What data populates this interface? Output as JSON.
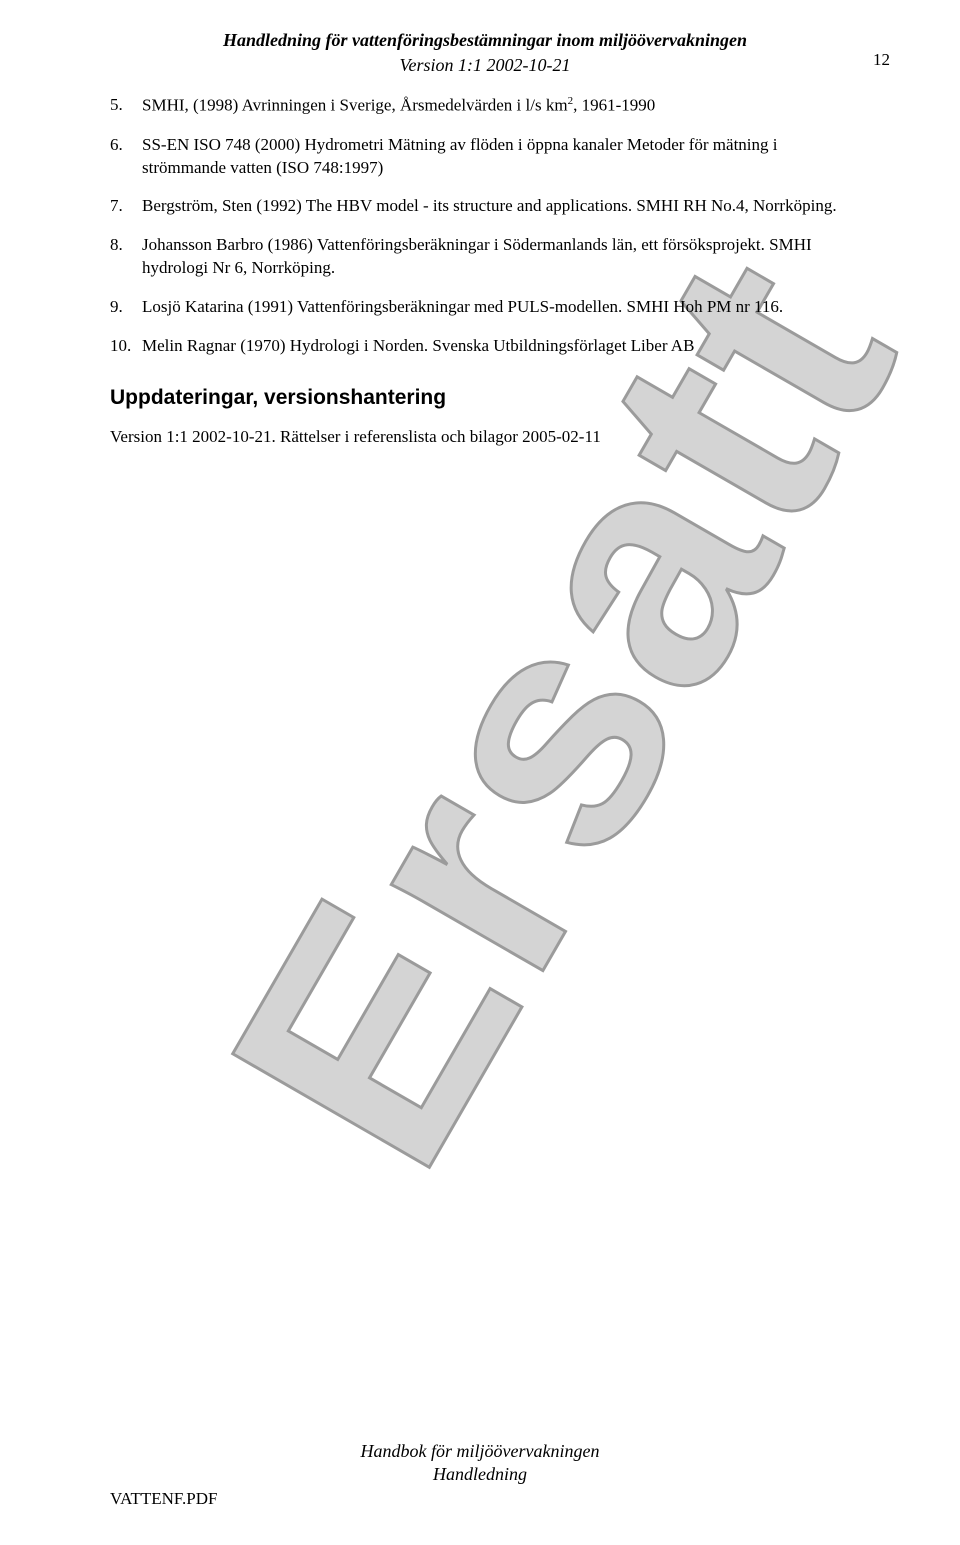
{
  "header": {
    "title": "Handledning för vattenföringsbestämningar inom miljöövervakningen",
    "version": "Version 1:1 2002-10-21",
    "page_number": "12"
  },
  "references": [
    {
      "num": "5.",
      "text_pre": "SMHI, (1998) Avrinningen i Sverige, Årsmedelvärden i l/s km",
      "sup": "2",
      "text_post": ", 1961-1990"
    },
    {
      "num": "6.",
      "text": "SS-EN ISO 748 (2000) Hydrometri Mätning av flöden i öppna kanaler Metoder för mätning i strömmande vatten (ISO 748:1997)"
    },
    {
      "num": "7.",
      "text": "Bergström, Sten (1992) The HBV model - its structure and applications. SMHI RH No.4, Norrköping."
    },
    {
      "num": "8.",
      "text": "Johansson Barbro (1986) Vattenföringsberäkningar i Södermanlands län, ett försöksprojekt. SMHI hydrologi Nr 6, Norrköping."
    },
    {
      "num": "9.",
      "text": "Losjö Katarina (1991) Vattenföringsberäkningar med PULS-modellen. SMHI Hoh PM nr 116."
    },
    {
      "num": "10.",
      "text": "Melin Ragnar (1970) Hydrologi i Norden. Svenska Utbildningsförlaget Liber AB"
    }
  ],
  "section": {
    "heading": "Uppdateringar, versionshantering",
    "body": "Version 1:1 2002-10-21. Rättelser i referenslista och bilagor 2005-02-11"
  },
  "footer": {
    "line1": "Handbok för miljöövervakningen",
    "line2": "Handledning",
    "left": "VATTENF.PDF"
  },
  "watermark": {
    "text": "Ersatt",
    "fill": "#b2b2b2",
    "stroke": "#4a4a4a",
    "font_size": 330,
    "stroke_width": 3
  }
}
